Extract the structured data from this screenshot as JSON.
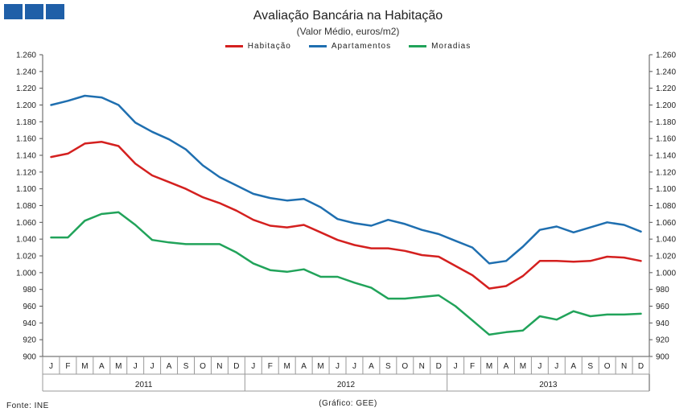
{
  "chart_data": {
    "type": "line",
    "title": "Avaliação Bancária na Habitação",
    "subtitle": "(Valor Médio, euros/m2)",
    "ylim": [
      900,
      1260
    ],
    "y_ticks": [
      "900",
      "920",
      "940",
      "960",
      "980",
      "1.000",
      "1.020",
      "1.040",
      "1.060",
      "1.080",
      "1.100",
      "1.120",
      "1.140",
      "1.160",
      "1.180",
      "1.200",
      "1.220",
      "1.240",
      "1.260"
    ],
    "y_tick_values": [
      900,
      920,
      940,
      960,
      980,
      1000,
      1020,
      1040,
      1060,
      1080,
      1100,
      1120,
      1140,
      1160,
      1180,
      1200,
      1220,
      1240,
      1260
    ],
    "dual_y_axis": true,
    "grid": false,
    "legend_position": "top",
    "months": [
      "J",
      "F",
      "M",
      "A",
      "M",
      "J",
      "J",
      "A",
      "S",
      "O",
      "N",
      "D",
      "J",
      "F",
      "M",
      "A",
      "M",
      "J",
      "J",
      "A",
      "S",
      "O",
      "N",
      "D",
      "J",
      "F",
      "M",
      "A",
      "M",
      "J",
      "J",
      "A",
      "S",
      "O",
      "N",
      "D"
    ],
    "years": [
      "2011",
      "2012",
      "2013"
    ],
    "series": [
      {
        "name": "Habitação",
        "color": "#d4201f",
        "values": [
          1138,
          1142,
          1154,
          1156,
          1151,
          1130,
          1116,
          1108,
          1100,
          1090,
          1083,
          1074,
          1063,
          1056,
          1054,
          1057,
          1048,
          1039,
          1033,
          1029,
          1029,
          1026,
          1021,
          1019,
          1008,
          997,
          981,
          984,
          996,
          1014,
          1014,
          1013,
          1014,
          1019,
          1018,
          1014
        ]
      },
      {
        "name": "Apartamentos",
        "color": "#1f6fb0",
        "values": [
          1200,
          1205,
          1211,
          1209,
          1200,
          1179,
          1168,
          1159,
          1147,
          1128,
          1114,
          1104,
          1094,
          1089,
          1086,
          1088,
          1078,
          1064,
          1059,
          1056,
          1063,
          1058,
          1051,
          1046,
          1038,
          1030,
          1011,
          1014,
          1031,
          1051,
          1055,
          1048,
          1054,
          1060,
          1057,
          1049
        ]
      },
      {
        "name": "Moradias",
        "color": "#21a35a",
        "values": [
          1042,
          1042,
          1062,
          1070,
          1072,
          1057,
          1039,
          1036,
          1034,
          1034,
          1034,
          1024,
          1011,
          1003,
          1001,
          1004,
          995,
          995,
          988,
          982,
          969,
          969,
          971,
          973,
          960,
          943,
          926,
          929,
          931,
          948,
          944,
          954,
          948,
          950,
          950,
          951
        ]
      }
    ]
  },
  "source_label": "Fonte: INE",
  "credit_label": "(Gráfico: GEE)"
}
